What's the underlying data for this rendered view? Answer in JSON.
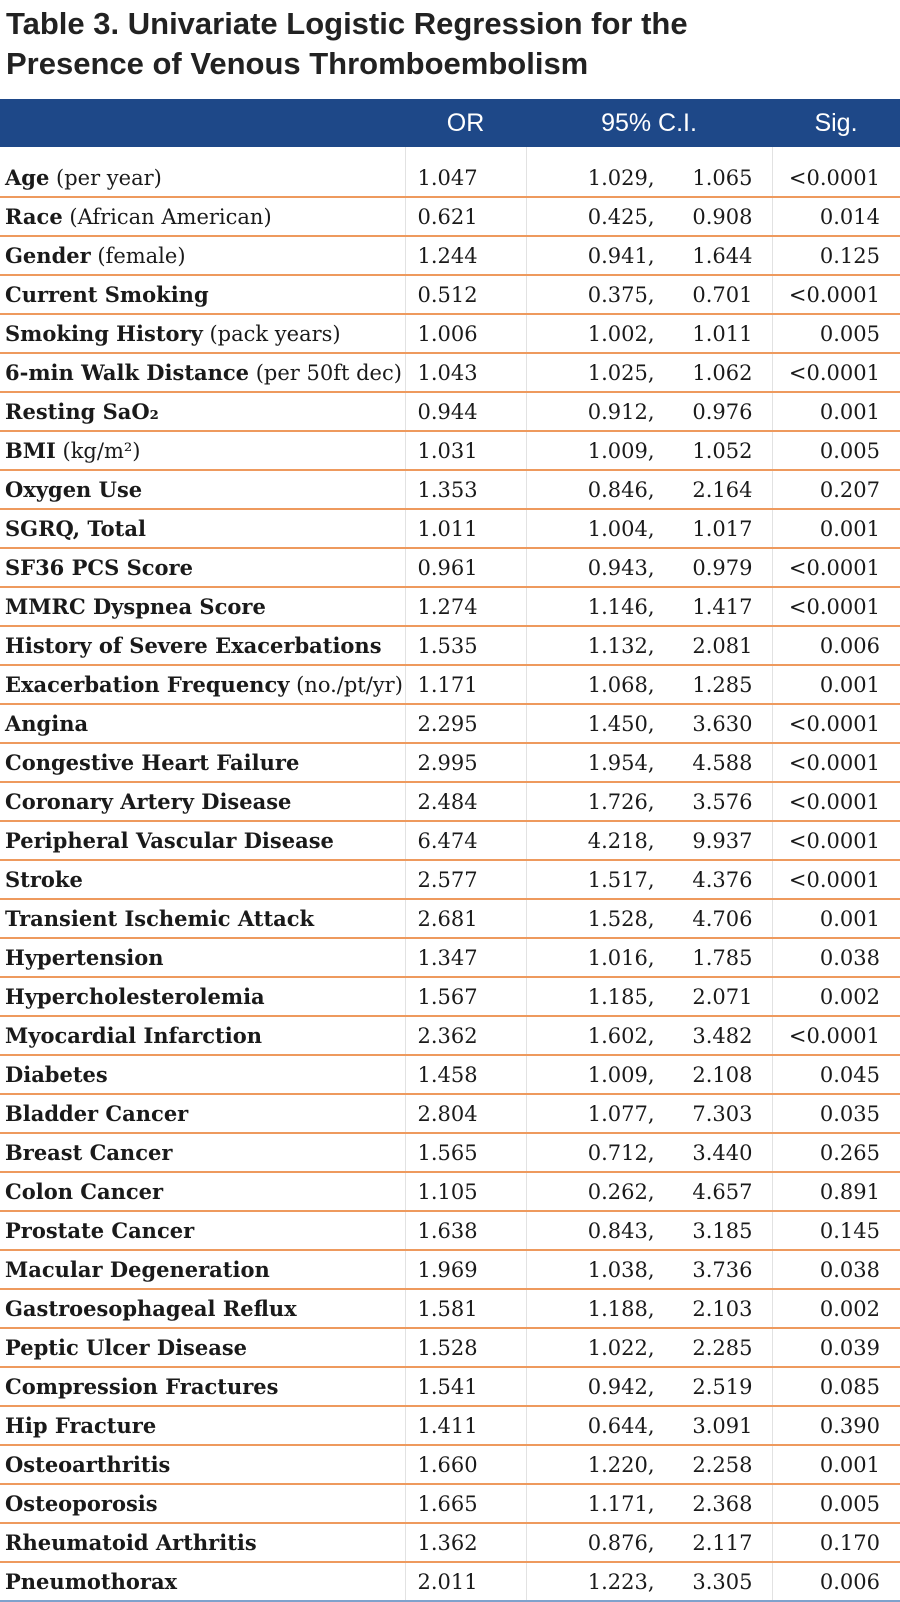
{
  "title": {
    "line1": "Table 3. Univariate Logistic Regression for the",
    "line2": "Presence of Venous Thromboembolism"
  },
  "header": {
    "variable": "",
    "or": "OR",
    "ci": "95% C.I.",
    "sig": "Sig."
  },
  "rows": [
    {
      "name": "Age",
      "detail": " (per year)",
      "or": "1.047",
      "ci_low": "1.029,",
      "ci_high": "1.065",
      "sig": "<0.0001"
    },
    {
      "name": "Race",
      "detail": " (African American)",
      "or": "0.621",
      "ci_low": "0.425,",
      "ci_high": "0.908",
      "sig": "0.014"
    },
    {
      "name": "Gender",
      "detail": " (female)",
      "or": "1.244",
      "ci_low": "0.941,",
      "ci_high": "1.644",
      "sig": "0.125"
    },
    {
      "name": "Current Smoking",
      "detail": "",
      "or": "0.512",
      "ci_low": "0.375,",
      "ci_high": "0.701",
      "sig": "<0.0001"
    },
    {
      "name": "Smoking History",
      "detail": " (pack years)",
      "or": "1.006",
      "ci_low": "1.002,",
      "ci_high": "1.011",
      "sig": "0.005"
    },
    {
      "name": "6-min Walk Distance",
      "detail": " (per 50ft dec)",
      "or": "1.043",
      "ci_low": "1.025,",
      "ci_high": "1.062",
      "sig": "<0.0001"
    },
    {
      "name": "Resting SaO₂",
      "detail": "",
      "or": "0.944",
      "ci_low": "0.912,",
      "ci_high": "0.976",
      "sig": "0.001"
    },
    {
      "name": "BMI",
      "detail": " (kg/m²)",
      "or": "1.031",
      "ci_low": "1.009,",
      "ci_high": "1.052",
      "sig": "0.005"
    },
    {
      "name": "Oxygen Use",
      "detail": "",
      "or": "1.353",
      "ci_low": "0.846,",
      "ci_high": "2.164",
      "sig": "0.207"
    },
    {
      "name": "SGRQ, Total",
      "detail": "",
      "or": "1.011",
      "ci_low": "1.004,",
      "ci_high": "1.017",
      "sig": "0.001"
    },
    {
      "name": "SF36 PCS Score",
      "detail": "",
      "or": "0.961",
      "ci_low": "0.943,",
      "ci_high": "0.979",
      "sig": "<0.0001"
    },
    {
      "name": "MMRC Dyspnea Score",
      "detail": "",
      "or": "1.274",
      "ci_low": "1.146,",
      "ci_high": "1.417",
      "sig": "<0.0001"
    },
    {
      "name": "History of Severe Exacerbations",
      "detail": "",
      "or": "1.535",
      "ci_low": "1.132,",
      "ci_high": "2.081",
      "sig": "0.006"
    },
    {
      "name": "Exacerbation Frequency",
      "detail": " (no./pt/yr)",
      "or": "1.171",
      "ci_low": "1.068,",
      "ci_high": "1.285",
      "sig": "0.001"
    },
    {
      "name": "Angina",
      "detail": "",
      "or": "2.295",
      "ci_low": "1.450,",
      "ci_high": "3.630",
      "sig": "<0.0001"
    },
    {
      "name": "Congestive Heart Failure",
      "detail": "",
      "or": "2.995",
      "ci_low": "1.954,",
      "ci_high": "4.588",
      "sig": "<0.0001"
    },
    {
      "name": "Coronary Artery Disease",
      "detail": "",
      "or": "2.484",
      "ci_low": "1.726,",
      "ci_high": "3.576",
      "sig": "<0.0001"
    },
    {
      "name": "Peripheral Vascular Disease",
      "detail": "",
      "or": "6.474",
      "ci_low": "4.218,",
      "ci_high": "9.937",
      "sig": "<0.0001"
    },
    {
      "name": "Stroke",
      "detail": "",
      "or": "2.577",
      "ci_low": "1.517,",
      "ci_high": "4.376",
      "sig": "<0.0001"
    },
    {
      "name": "Transient Ischemic Attack",
      "detail": "",
      "or": "2.681",
      "ci_low": "1.528,",
      "ci_high": "4.706",
      "sig": "0.001"
    },
    {
      "name": "Hypertension",
      "detail": "",
      "or": "1.347",
      "ci_low": "1.016,",
      "ci_high": "1.785",
      "sig": "0.038"
    },
    {
      "name": "Hypercholesterolemia",
      "detail": "",
      "or": "1.567",
      "ci_low": "1.185,",
      "ci_high": "2.071",
      "sig": "0.002"
    },
    {
      "name": "Myocardial Infarction",
      "detail": "",
      "or": "2.362",
      "ci_low": "1.602,",
      "ci_high": "3.482",
      "sig": "<0.0001"
    },
    {
      "name": "Diabetes",
      "detail": "",
      "or": "1.458",
      "ci_low": "1.009,",
      "ci_high": "2.108",
      "sig": "0.045"
    },
    {
      "name": "Bladder Cancer",
      "detail": "",
      "or": "2.804",
      "ci_low": "1.077,",
      "ci_high": "7.303",
      "sig": "0.035"
    },
    {
      "name": "Breast Cancer",
      "detail": "",
      "or": "1.565",
      "ci_low": "0.712,",
      "ci_high": "3.440",
      "sig": "0.265"
    },
    {
      "name": "Colon Cancer",
      "detail": "",
      "or": "1.105",
      "ci_low": "0.262,",
      "ci_high": "4.657",
      "sig": "0.891"
    },
    {
      "name": "Prostate Cancer",
      "detail": "",
      "or": "1.638",
      "ci_low": "0.843,",
      "ci_high": "3.185",
      "sig": "0.145"
    },
    {
      "name": "Macular Degeneration",
      "detail": "",
      "or": "1.969",
      "ci_low": "1.038,",
      "ci_high": "3.736",
      "sig": "0.038"
    },
    {
      "name": "Gastroesophageal Reflux",
      "detail": "",
      "or": "1.581",
      "ci_low": "1.188,",
      "ci_high": "2.103",
      "sig": "0.002"
    },
    {
      "name": "Peptic Ulcer Disease",
      "detail": "",
      "or": "1.528",
      "ci_low": "1.022,",
      "ci_high": "2.285",
      "sig": "0.039"
    },
    {
      "name": "Compression Fractures",
      "detail": "",
      "or": "1.541",
      "ci_low": "0.942,",
      "ci_high": "2.519",
      "sig": "0.085"
    },
    {
      "name": "Hip Fracture",
      "detail": "",
      "or": "1.411",
      "ci_low": "0.644,",
      "ci_high": "3.091",
      "sig": "0.390"
    },
    {
      "name": "Osteoarthritis",
      "detail": "",
      "or": "1.660",
      "ci_low": "1.220,",
      "ci_high": "2.258",
      "sig": "0.001"
    },
    {
      "name": "Osteoporosis",
      "detail": "",
      "or": "1.665",
      "ci_low": "1.171,",
      "ci_high": "2.368",
      "sig": "0.005"
    },
    {
      "name": "Rheumatoid Arthritis",
      "detail": "",
      "or": "1.362",
      "ci_low": "0.876,",
      "ci_high": "2.117",
      "sig": "0.170"
    },
    {
      "name": "Pneumothorax",
      "detail": "",
      "or": "2.011",
      "ci_low": "1.223,",
      "ci_high": "3.305",
      "sig": "0.006"
    }
  ],
  "colors": {
    "header_bg": "#1e4888",
    "row_divider": "#ee9a5e",
    "bottom_rule": "#7fa2cc"
  }
}
